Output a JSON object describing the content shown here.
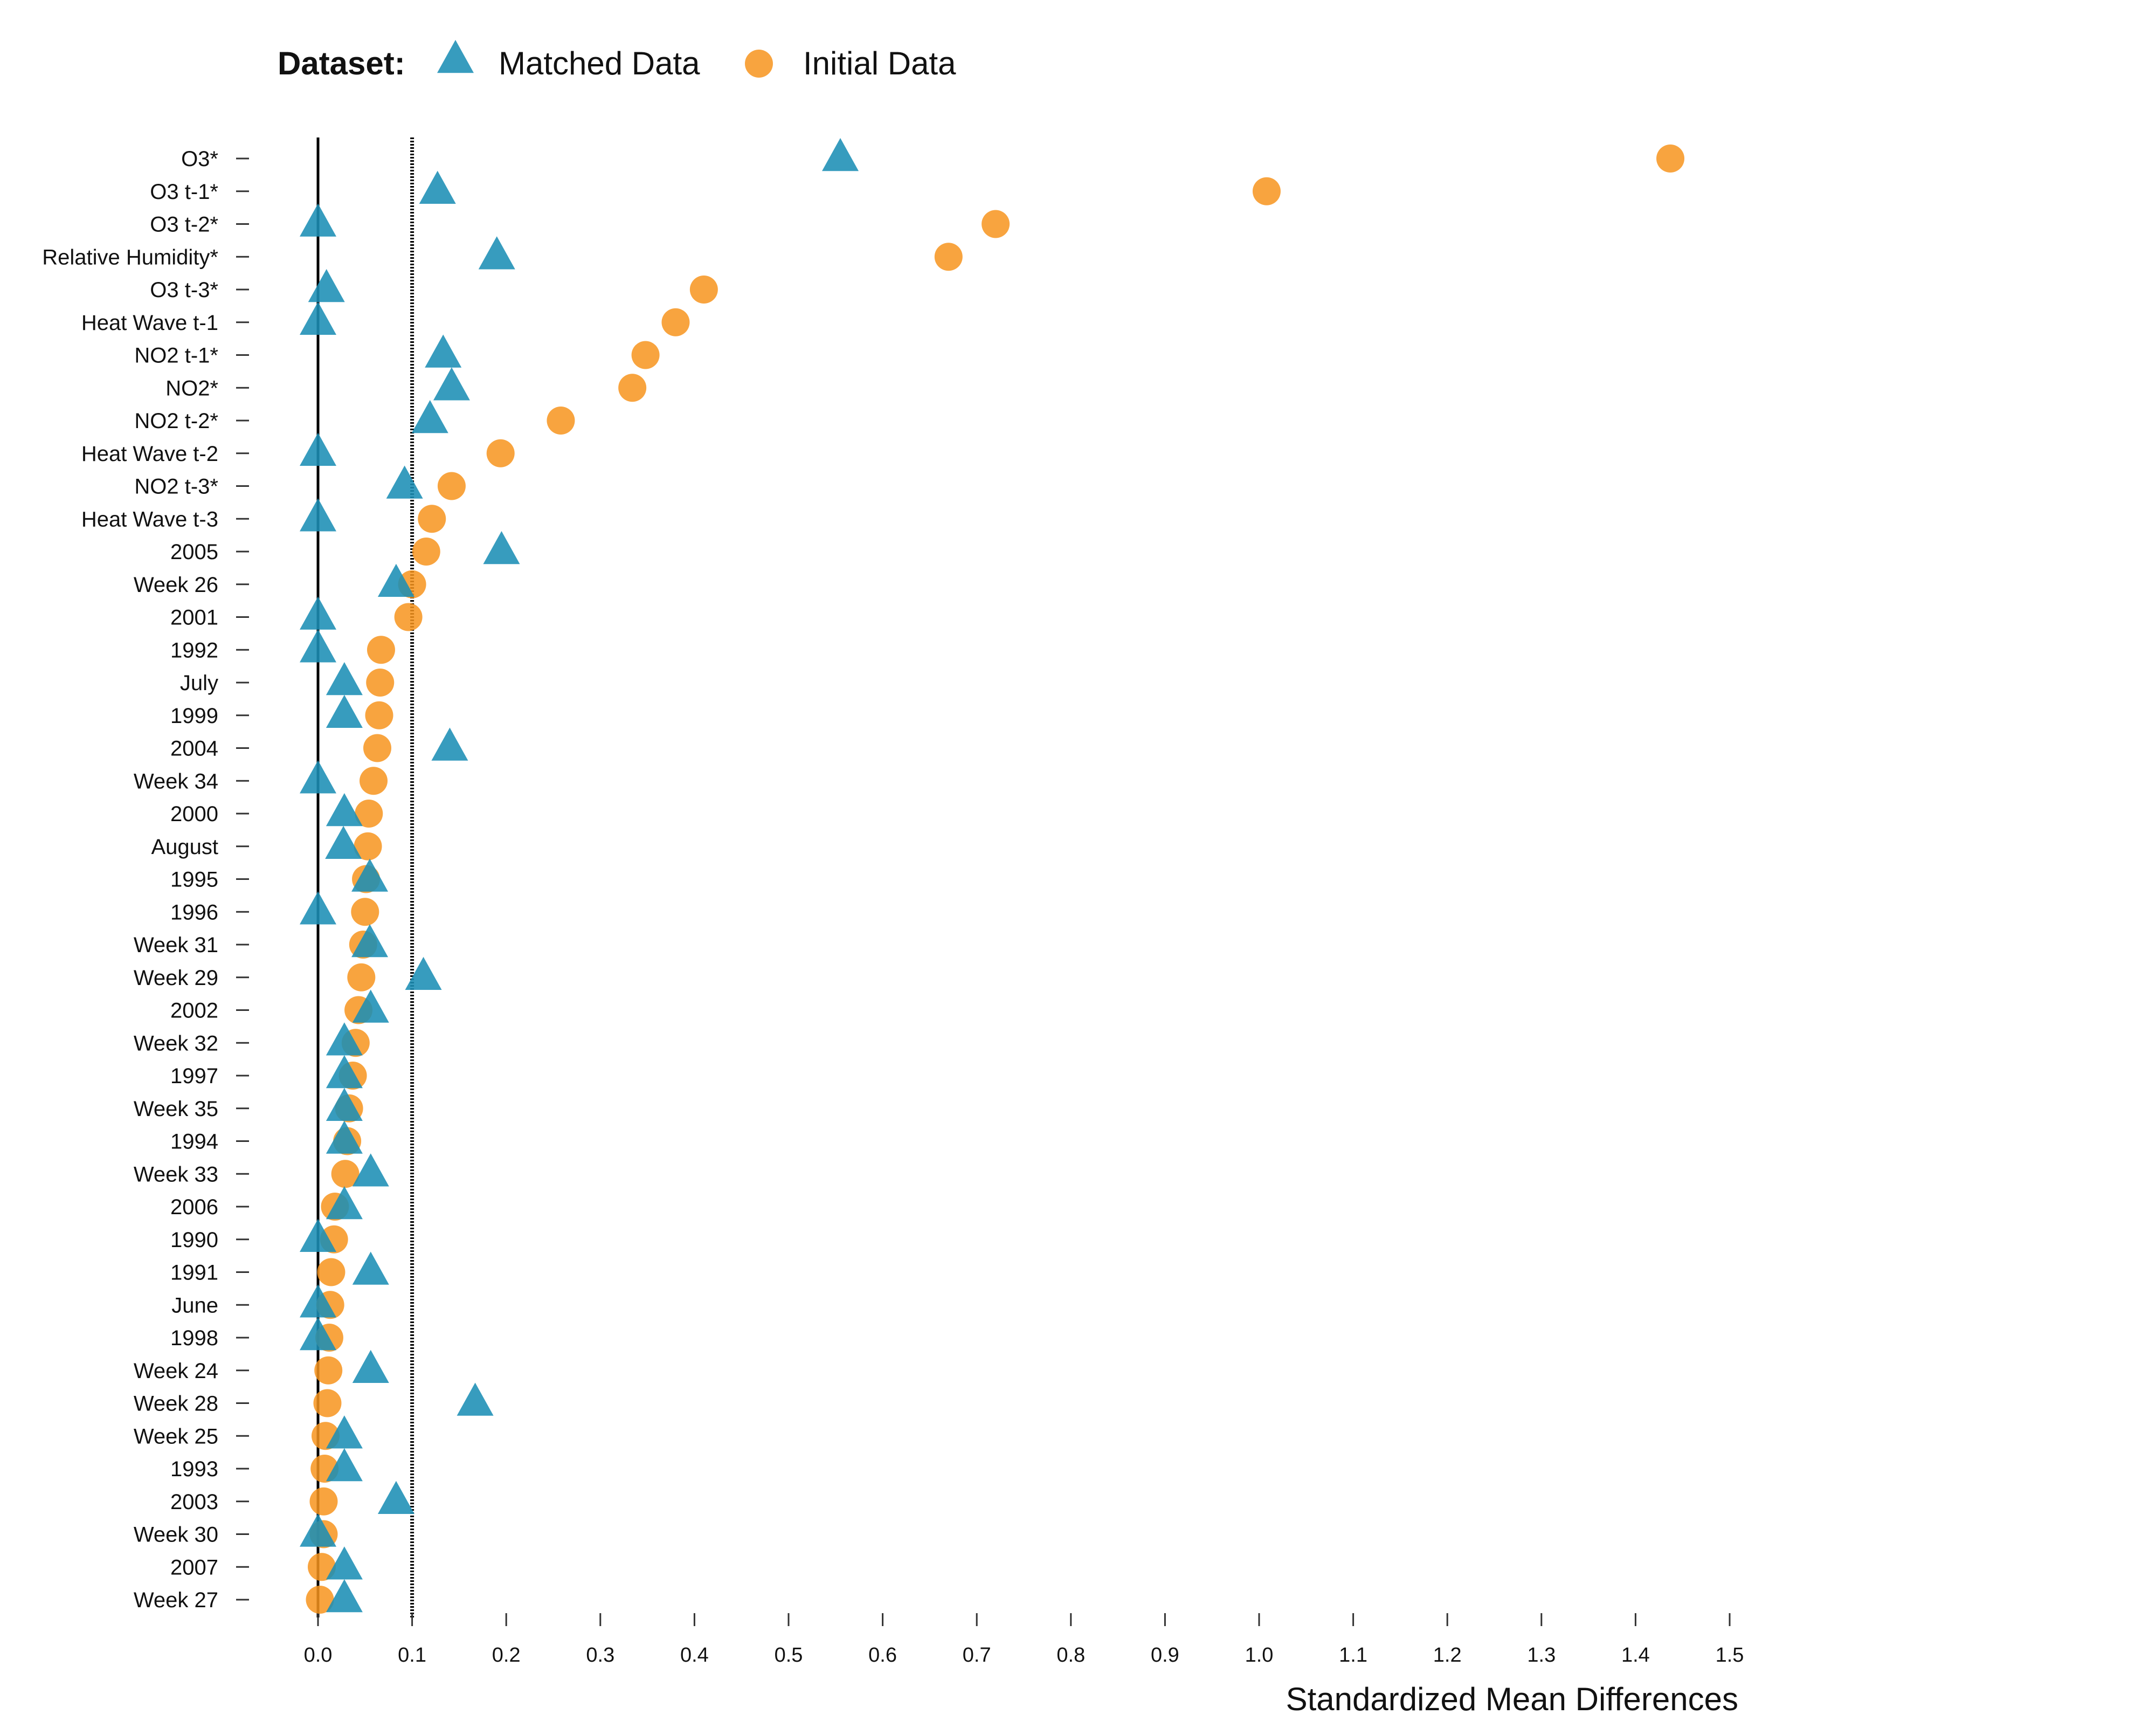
{
  "chart_data": {
    "type": "scatter",
    "title": "",
    "xlabel": "Standardized Mean Differences",
    "ylabel": "",
    "xlim": [
      0,
      1.5
    ],
    "x_ticks": [
      "0.0",
      "0.1",
      "0.2",
      "0.3",
      "0.4",
      "0.5",
      "0.6",
      "0.7",
      "0.8",
      "0.9",
      "1.0",
      "1.1",
      "1.2",
      "1.3",
      "1.4",
      "1.5"
    ],
    "reference_lines": [
      {
        "value": 0,
        "style": "solid"
      },
      {
        "value": 0.1,
        "style": "dotted"
      }
    ],
    "legend": {
      "title": "Dataset:",
      "placement": "top-left"
    },
    "grid": false,
    "categories": [
      "O3*",
      "O3 t-1*",
      "O3 t-2*",
      "Relative Humidity*",
      "O3 t-3*",
      "Heat Wave t-1",
      "NO2 t-1*",
      "NO2*",
      "NO2 t-2*",
      "Heat Wave t-2",
      "NO2 t-3*",
      "Heat Wave t-3",
      "2005",
      "Week 26",
      "2001",
      "1992",
      "July",
      "1999",
      "2004",
      "Week 34",
      "2000",
      "August",
      "1995",
      "1996",
      "Week 31",
      "Week 29",
      "2002",
      "Week 32",
      "1997",
      "Week 35",
      "1994",
      "Week 33",
      "2006",
      "1990",
      "1991",
      "June",
      "1998",
      "Week 24",
      "Week 28",
      "Week 25",
      "1993",
      "2003",
      "Week 30",
      "2007",
      "Week 27"
    ],
    "series": [
      {
        "name": "Initial Data",
        "marker": "circle",
        "color": "#F7941D",
        "values": [
          1.437,
          1.008,
          0.72,
          0.67,
          0.41,
          0.38,
          0.348,
          0.334,
          0.258,
          0.194,
          0.142,
          0.121,
          0.115,
          0.1,
          0.096,
          0.067,
          0.066,
          0.065,
          0.063,
          0.059,
          0.054,
          0.053,
          0.051,
          0.05,
          0.048,
          0.046,
          0.043,
          0.04,
          0.037,
          0.033,
          0.031,
          0.029,
          0.018,
          0.017,
          0.014,
          0.013,
          0.012,
          0.011,
          0.01,
          0.008,
          0.007,
          0.006,
          0.006,
          0.004,
          0.002
        ]
      },
      {
        "name": "Matched Data",
        "marker": "triangle",
        "color": "#1B8EB5",
        "values": [
          0.555,
          0.127,
          0.0,
          0.19,
          0.009,
          0.0,
          0.133,
          0.142,
          0.119,
          0.0,
          0.092,
          0.0,
          0.195,
          0.083,
          0.0,
          0.0,
          0.028,
          0.028,
          0.14,
          0.0,
          0.028,
          0.027,
          0.055,
          0.0,
          0.055,
          0.112,
          0.056,
          0.028,
          0.028,
          0.028,
          0.028,
          0.056,
          0.028,
          0.0,
          0.056,
          0.0,
          0.0,
          0.056,
          0.167,
          0.028,
          0.028,
          0.083,
          0.0,
          0.028,
          0.028
        ]
      }
    ]
  }
}
